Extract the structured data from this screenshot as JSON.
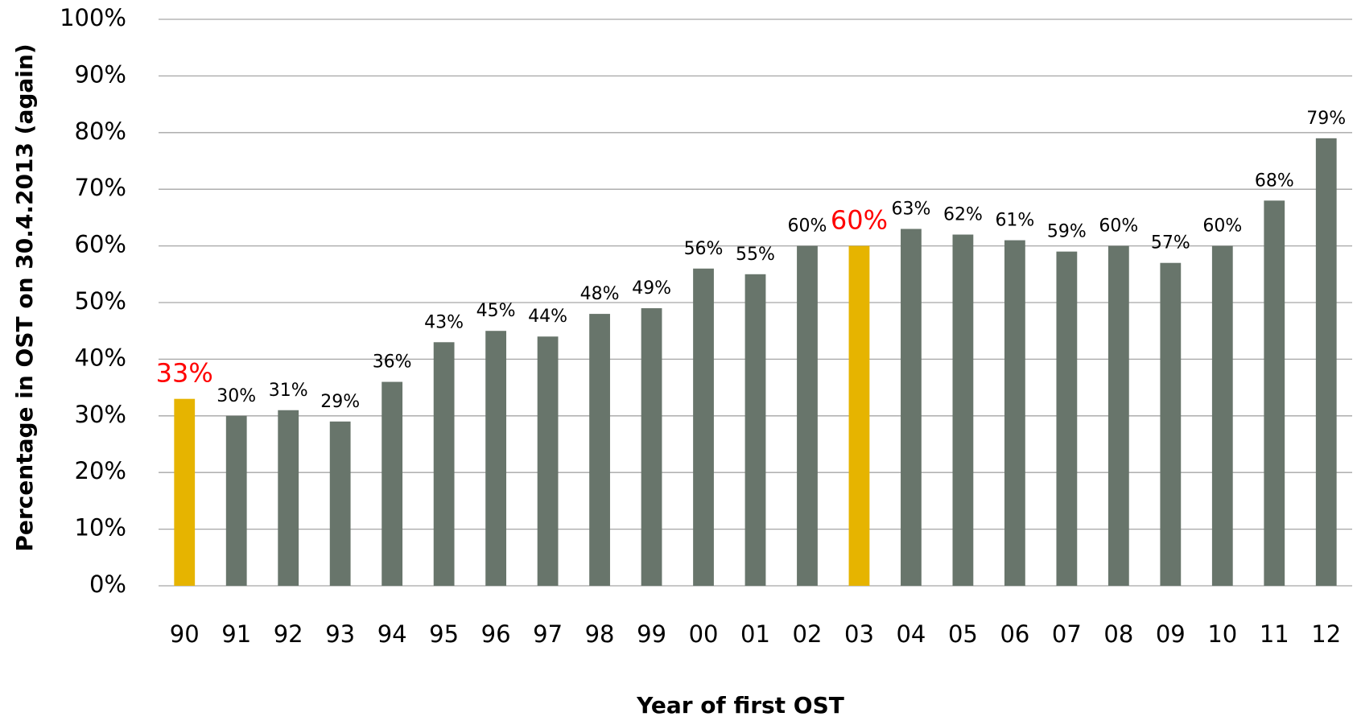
{
  "chart_data": {
    "type": "bar",
    "x_label": "Year of first OST",
    "y_label": "Percentage in OST on 30.4.2013 (again)",
    "categories": [
      "90",
      "91",
      "92",
      "93",
      "94",
      "95",
      "96",
      "97",
      "98",
      "99",
      "00",
      "01",
      "02",
      "03",
      "04",
      "05",
      "06",
      "07",
      "08",
      "09",
      "10",
      "11",
      "12"
    ],
    "values": [
      33,
      30,
      31,
      29,
      36,
      43,
      45,
      44,
      48,
      49,
      56,
      55,
      60,
      60,
      63,
      62,
      61,
      59,
      60,
      57,
      60,
      68,
      79
    ],
    "value_labels": [
      "33%",
      "30%",
      "31%",
      "29%",
      "36%",
      "43%",
      "45%",
      "44%",
      "48%",
      "49%",
      "56%",
      "55%",
      "60%",
      "60%",
      "63%",
      "62%",
      "61%",
      "59%",
      "60%",
      "57%",
      "60%",
      "68%",
      "79%"
    ],
    "colors": [
      "#e6b400",
      "#68756b",
      "#68756b",
      "#68756b",
      "#68756b",
      "#68756b",
      "#68756b",
      "#68756b",
      "#68756b",
      "#68756b",
      "#68756b",
      "#68756b",
      "#68756b",
      "#e6b400",
      "#68756b",
      "#68756b",
      "#68756b",
      "#68756b",
      "#68756b",
      "#68756b",
      "#68756b",
      "#68756b",
      "#68756b"
    ],
    "label_colors": [
      "#ff0000",
      "#000000",
      "#000000",
      "#000000",
      "#000000",
      "#000000",
      "#000000",
      "#000000",
      "#000000",
      "#000000",
      "#000000",
      "#000000",
      "#000000",
      "#ff0000",
      "#000000",
      "#000000",
      "#000000",
      "#000000",
      "#000000",
      "#000000",
      "#000000",
      "#000000",
      "#000000"
    ],
    "ylim": [
      0,
      100
    ],
    "yticks": [
      {
        "value": 0,
        "label": "0%"
      },
      {
        "value": 10,
        "label": "10%"
      },
      {
        "value": 20,
        "label": "20%"
      },
      {
        "value": 30,
        "label": "30%"
      },
      {
        "value": 40,
        "label": "40%"
      },
      {
        "value": 50,
        "label": "50%"
      },
      {
        "value": 60,
        "label": "60%"
      },
      {
        "value": 70,
        "label": "70%"
      },
      {
        "value": 80,
        "label": "80%"
      },
      {
        "value": 90,
        "label": "90%"
      },
      {
        "value": 100,
        "label": "100%"
      }
    ],
    "grid": true
  }
}
